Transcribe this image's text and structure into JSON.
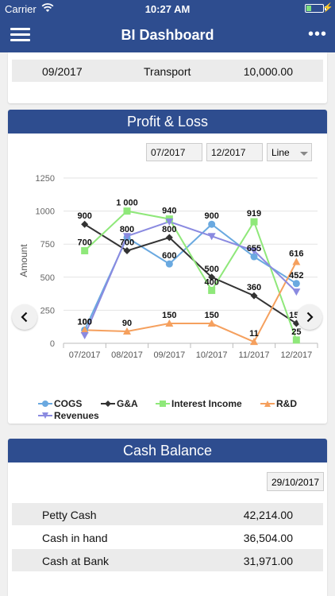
{
  "status_bar": {
    "carrier": "Carrier",
    "time": "10:27 AM"
  },
  "nav": {
    "title": "BI Dashboard"
  },
  "top_row": {
    "date": "09/2017",
    "category": "Transport",
    "amount": "10,000.00"
  },
  "profit_loss": {
    "title": "Profit & Loss",
    "from": "07/2017",
    "to": "12/2017",
    "chart_type_select": "Line"
  },
  "chart_data": {
    "type": "line",
    "ylabel": "Amount",
    "xlabel": "",
    "ylim": [
      0,
      1250
    ],
    "yticks": [
      "0",
      "250",
      "500",
      "750",
      "1000",
      "1250"
    ],
    "categories": [
      "07/2017",
      "08/2017",
      "09/2017",
      "10/2017",
      "11/2017",
      "12/2017"
    ],
    "series": [
      {
        "name": "COGS",
        "color": "#6aa9e0",
        "marker": "circle",
        "values": [
          100,
          800,
          600,
          900,
          655,
          452
        ],
        "labels": [
          "100",
          "800",
          "600",
          "900",
          "655",
          "452"
        ]
      },
      {
        "name": "G&A",
        "color": "#333333",
        "marker": "diamond",
        "values": [
          900,
          700,
          800,
          500,
          360,
          150
        ],
        "labels": [
          "900",
          "700",
          "800",
          "500",
          "360",
          "150"
        ]
      },
      {
        "name": "Interest Income",
        "color": "#8fe87a",
        "marker": "square",
        "values": [
          700,
          1000,
          940,
          400,
          919,
          25
        ],
        "labels": [
          "700",
          "1 000",
          "940",
          "400",
          "919",
          "25"
        ]
      },
      {
        "name": "R&D",
        "color": "#f5a05e",
        "marker": "triangle-up",
        "values": [
          100,
          90,
          150,
          150,
          11,
          616
        ],
        "labels": [
          "100",
          "90",
          "150",
          "150",
          "11",
          "616"
        ]
      },
      {
        "name": "Revenues",
        "color": "#8a8ae0",
        "marker": "triangle-down",
        "values": [
          60,
          810,
          920,
          810,
          700,
          390
        ],
        "labels": [
          "",
          "",
          "",
          "",
          "",
          ""
        ]
      }
    ],
    "grid": true,
    "legend_position": "bottom"
  },
  "cash_balance": {
    "title": "Cash Balance",
    "date": "29/10/2017",
    "rows": [
      {
        "label": "Petty Cash",
        "amount": "42,214.00"
      },
      {
        "label": "Cash in hand",
        "amount": "36,504.00"
      },
      {
        "label": "Cash at Bank",
        "amount": "31,971.00"
      }
    ]
  }
}
